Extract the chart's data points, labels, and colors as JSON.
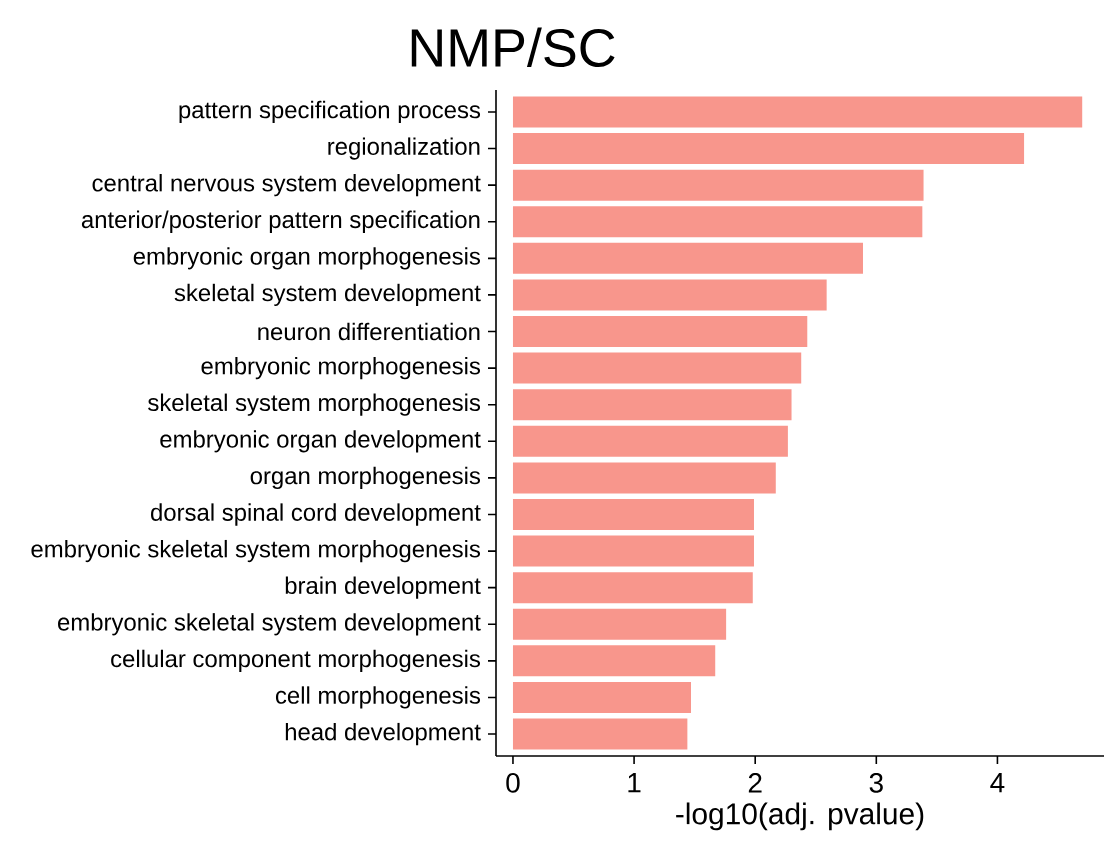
{
  "chart_data": {
    "type": "bar",
    "orientation": "horizontal",
    "title": "NMP/SC",
    "xlabel": "-log10(adj. pvalue)",
    "categories": [
      "pattern specification process",
      "regionalization",
      "central nervous system development",
      "anterior/posterior pattern specification",
      "embryonic organ morphogenesis",
      "skeletal system development",
      "neuron differentiation",
      "embryonic morphogenesis",
      "skeletal system morphogenesis",
      "embryonic organ development",
      "organ morphogenesis",
      "dorsal spinal cord development",
      "embryonic skeletal system morphogenesis",
      "brain development",
      "embryonic skeletal system development",
      "cellular component morphogenesis",
      "cell morphogenesis",
      "head development"
    ],
    "values": [
      4.7,
      4.22,
      3.39,
      3.38,
      2.89,
      2.59,
      2.43,
      2.38,
      2.3,
      2.27,
      2.17,
      1.99,
      1.99,
      1.98,
      1.76,
      1.67,
      1.47,
      1.44
    ],
    "color": "#f8968c",
    "xlim": [
      -0.14,
      4.88
    ],
    "xticks": [
      0,
      1,
      2,
      3,
      4
    ]
  }
}
